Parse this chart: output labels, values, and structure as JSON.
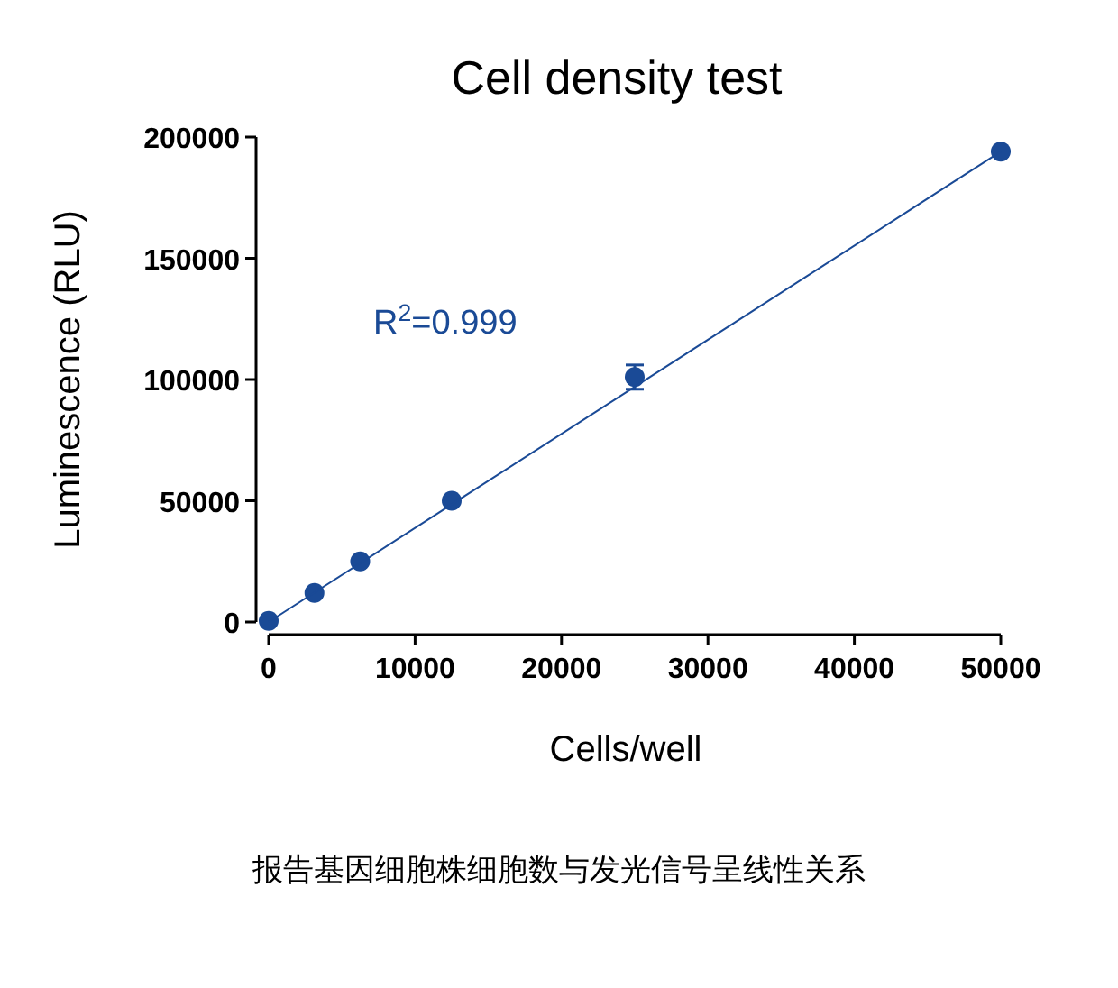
{
  "chart_data": {
    "type": "scatter",
    "title": "Cell density test",
    "xlabel": "Cells/well",
    "ylabel": "Luminescence (RLU)",
    "x": [
      0,
      3125,
      6250,
      12500,
      25000,
      50000
    ],
    "series": [
      {
        "marker": "circle",
        "color": "#1a4a96",
        "values": [
          500,
          12000,
          25000,
          50000,
          101000,
          194000
        ],
        "errors": [
          null,
          null,
          null,
          null,
          5000,
          null
        ]
      },
      {
        "type": "line",
        "marker": "none",
        "color": "#1a4a96",
        "x": [
          0,
          50000
        ],
        "values": [
          0,
          194000
        ]
      }
    ],
    "xlim": [
      0,
      50000
    ],
    "ylim": [
      0,
      200000
    ],
    "xticks": [
      0,
      10000,
      20000,
      30000,
      40000,
      50000
    ],
    "yticks": [
      0,
      50000,
      100000,
      150000,
      200000
    ],
    "grid": false,
    "annotations": [
      "R$^{2}$=0.999",
      "报告基因细胞株细胞数与发光信号呈线性关系"
    ]
  }
}
